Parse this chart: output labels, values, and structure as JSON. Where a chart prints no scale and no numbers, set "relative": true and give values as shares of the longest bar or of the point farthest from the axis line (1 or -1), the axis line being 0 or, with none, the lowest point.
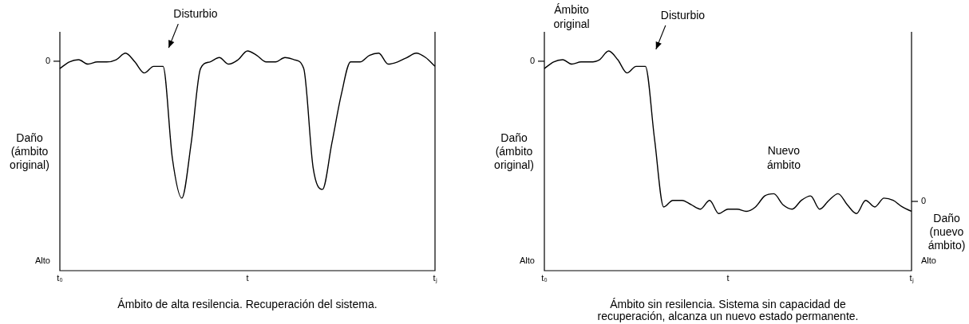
{
  "chart_data": [
    {
      "type": "line",
      "relative": true,
      "ylabel": "Daño (ámbito original)",
      "xlabel": "Ámbito de alta resilencia. Recuperación del sistema.",
      "color": "#000000",
      "categories": [
        "t₀",
        null,
        null,
        null,
        null,
        null,
        null,
        null,
        null,
        null,
        null,
        null,
        null,
        null,
        null,
        null,
        null,
        null,
        null,
        null,
        "t",
        null,
        null,
        null,
        null,
        null,
        null,
        null,
        null,
        null,
        null,
        null,
        null,
        null,
        null,
        null,
        null,
        null,
        null,
        null,
        "tⱼ"
      ],
      "values": [
        0.92,
        0.95,
        0.96,
        0.94,
        0.95,
        0.95,
        0.96,
        0.99,
        0.95,
        0.9,
        0.93,
        0.93,
        0.51,
        0.33,
        0.58,
        0.92,
        0.95,
        0.97,
        0.94,
        0.96,
        1,
        0.98,
        0.95,
        0.95,
        0.97,
        0.96,
        0.92,
        0.47,
        0.37,
        0.58,
        0.8,
        0.95,
        0.95,
        0.98,
        0.99,
        0.94,
        0.95,
        0.97,
        0.99,
        0.97,
        0.93
      ],
      "annotations": [
        "Disturbio",
        "0",
        "Alto"
      ]
    },
    {
      "type": "line",
      "relative": true,
      "ylabel": "Daño (ámbito original)",
      "y2label": "Daño (nuevo ámbito)",
      "xlabel": "Ámbito sin resilencia. Sistema sin capacidad de recuperación, alcanza un nuevo estado permanente.",
      "color": "#000000",
      "categories": [
        "t₀",
        null,
        null,
        null,
        null,
        null,
        null,
        null,
        null,
        null,
        null,
        null,
        null,
        null,
        null,
        null,
        null,
        null,
        null,
        null,
        "t",
        null,
        null,
        null,
        null,
        null,
        null,
        null,
        null,
        null,
        null,
        null,
        null,
        null,
        null,
        null,
        null,
        null,
        null,
        null,
        "tⱼ"
      ],
      "values": [
        0.92,
        0.95,
        0.96,
        0.94,
        0.95,
        0.95,
        0.96,
        1,
        0.96,
        0.9,
        0.93,
        0.93,
        0.6,
        0.29,
        0.32,
        0.32,
        0.3,
        0.28,
        0.32,
        0.26,
        0.28,
        0.28,
        0.27,
        0.29,
        0.34,
        0.35,
        0.3,
        0.28,
        0.32,
        0.34,
        0.28,
        0.32,
        0.35,
        0.3,
        0.26,
        0.32,
        0.29,
        0.33,
        0.32,
        0.29,
        0.27
      ],
      "annotations": [
        "Ámbito original",
        "Disturbio",
        "Nuevo ámbito",
        "0",
        "Alto",
        "0",
        "Alto"
      ]
    }
  ]
}
